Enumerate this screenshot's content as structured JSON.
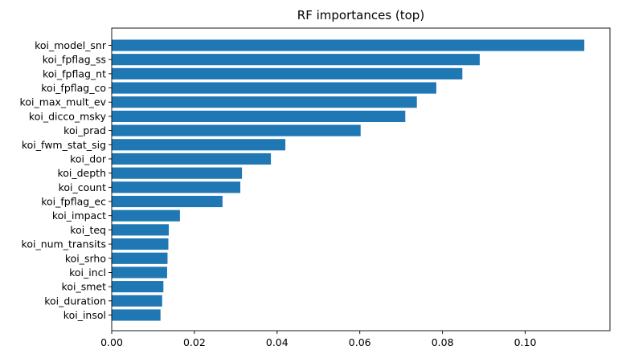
{
  "chart_data": {
    "type": "bar",
    "orientation": "horizontal",
    "title": "RF importances (top)",
    "xlabel": "",
    "ylabel": "",
    "xlim": [
      0,
      0.1205
    ],
    "grid": false,
    "bar_color": "#1f77b4",
    "categories": [
      "koi_model_snr",
      "koi_fpflag_ss",
      "koi_fpflag_nt",
      "koi_fpflag_co",
      "koi_max_mult_ev",
      "koi_dicco_msky",
      "koi_prad",
      "koi_fwm_stat_sig",
      "koi_dor",
      "koi_depth",
      "koi_count",
      "koi_fpflag_ec",
      "koi_impact",
      "koi_teq",
      "koi_num_transits",
      "koi_srho",
      "koi_incl",
      "koi_smet",
      "koi_duration",
      "koi_insol"
    ],
    "values": [
      0.1143,
      0.089,
      0.0848,
      0.0785,
      0.0738,
      0.071,
      0.0602,
      0.042,
      0.0385,
      0.0315,
      0.0311,
      0.0268,
      0.0165,
      0.0138,
      0.0137,
      0.0135,
      0.0134,
      0.0125,
      0.0122,
      0.0118
    ],
    "xticks": [
      0.0,
      0.02,
      0.04,
      0.06,
      0.08,
      0.1
    ],
    "xtick_labels": [
      "0.00",
      "0.02",
      "0.04",
      "0.06",
      "0.08",
      "0.10"
    ]
  }
}
